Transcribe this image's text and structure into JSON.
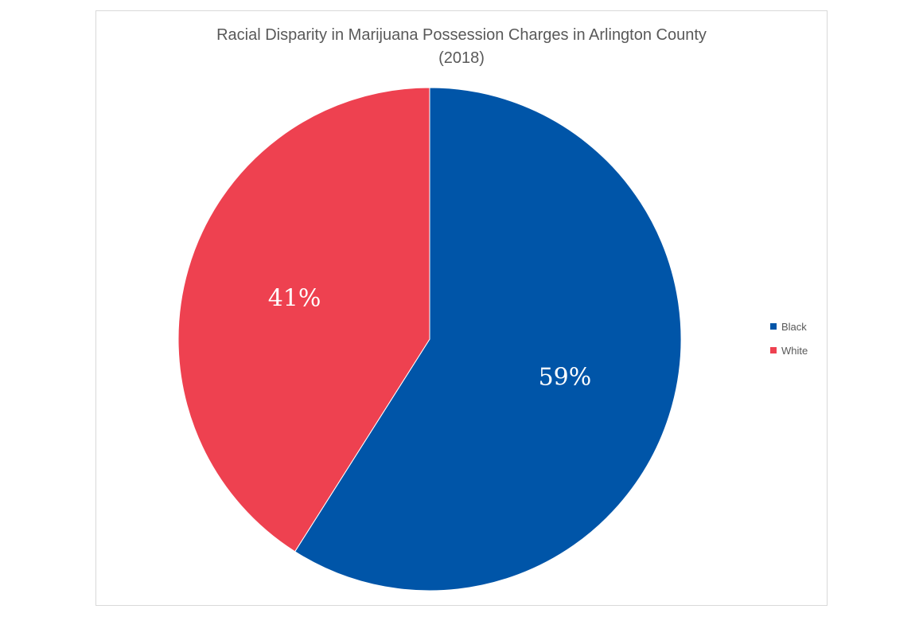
{
  "chart_data": {
    "type": "pie",
    "title": "Racial Disparity in Marijuana Possession Charges in Arlington County",
    "subtitle": "(2018)",
    "categories": [
      "Black",
      "White"
    ],
    "values": [
      59,
      41
    ],
    "data_labels": [
      "59%",
      "41%"
    ],
    "colors": [
      "#0055a8",
      "#ee4150"
    ],
    "legend_position": "right"
  }
}
